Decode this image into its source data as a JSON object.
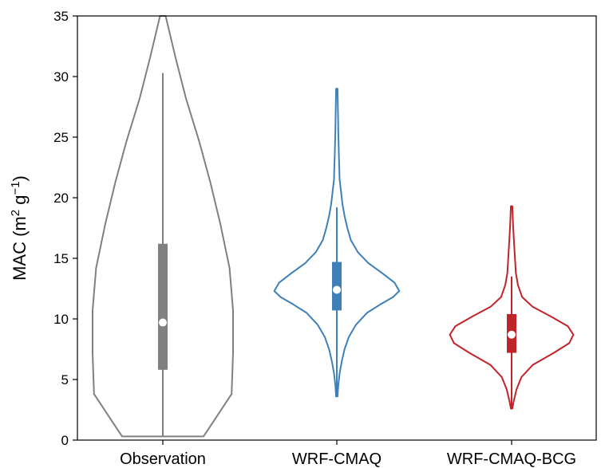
{
  "chart_data": {
    "type": "violin",
    "ylabel": {
      "base": "MAC (m",
      "sup1": "2",
      "mid": " g",
      "sup2": "−1",
      "end": ")"
    },
    "ylim": [
      0,
      35
    ],
    "yticks": [
      0,
      5,
      10,
      15,
      20,
      25,
      30,
      35
    ],
    "categories": [
      "Observation",
      "WRF-CMAQ",
      "WRF-CMAQ-BCG"
    ],
    "series": [
      {
        "color": "#808080",
        "min": 0.3,
        "q1": 5.8,
        "median": 9.7,
        "q3": 16.2,
        "whisker_high": 30.3,
        "max": 35,
        "profile": [
          [
            0.3,
            0.58
          ],
          [
            3.8,
            0.98
          ],
          [
            7.2,
            1.0
          ],
          [
            10.7,
            1.0
          ],
          [
            14.2,
            0.95
          ],
          [
            17.8,
            0.82
          ],
          [
            21.2,
            0.68
          ],
          [
            24.6,
            0.52
          ],
          [
            28.2,
            0.33
          ],
          [
            31.6,
            0.18
          ],
          [
            35.0,
            0.04
          ]
        ]
      },
      {
        "color": "#3f80b9",
        "min": 3.6,
        "q1": 10.7,
        "median": 12.4,
        "q3": 14.7,
        "whisker_high": 19.2,
        "max": 29.0,
        "profile": [
          [
            3.6,
            0.01
          ],
          [
            4.5,
            0.02
          ],
          [
            5.5,
            0.04
          ],
          [
            6.5,
            0.07
          ],
          [
            7.5,
            0.11
          ],
          [
            8.5,
            0.17
          ],
          [
            9.5,
            0.27
          ],
          [
            10.5,
            0.43
          ],
          [
            11.2,
            0.62
          ],
          [
            11.8,
            0.8
          ],
          [
            12.3,
            0.89
          ],
          [
            13.0,
            0.82
          ],
          [
            13.8,
            0.64
          ],
          [
            14.6,
            0.45
          ],
          [
            15.5,
            0.3
          ],
          [
            16.5,
            0.2
          ],
          [
            17.5,
            0.15
          ],
          [
            18.5,
            0.11
          ],
          [
            19.5,
            0.08
          ],
          [
            20.5,
            0.06
          ],
          [
            21.5,
            0.04
          ],
          [
            22.5,
            0.035
          ],
          [
            23.5,
            0.03
          ],
          [
            24.5,
            0.025
          ],
          [
            25.5,
            0.02
          ],
          [
            26.5,
            0.018
          ],
          [
            27.5,
            0.015
          ],
          [
            29.0,
            0.01
          ]
        ]
      },
      {
        "color": "#c02428",
        "min": 2.6,
        "q1": 7.2,
        "median": 8.7,
        "q3": 10.4,
        "whisker_high": 13.5,
        "max": 19.3,
        "profile": [
          [
            2.6,
            0.01
          ],
          [
            3.2,
            0.03
          ],
          [
            4.2,
            0.07
          ],
          [
            5.2,
            0.14
          ],
          [
            6.2,
            0.3
          ],
          [
            7.2,
            0.6
          ],
          [
            8.0,
            0.82
          ],
          [
            8.7,
            0.88
          ],
          [
            9.4,
            0.8
          ],
          [
            10.2,
            0.56
          ],
          [
            11.0,
            0.3
          ],
          [
            11.8,
            0.15
          ],
          [
            12.8,
            0.09
          ],
          [
            13.8,
            0.06
          ],
          [
            14.8,
            0.05
          ],
          [
            15.8,
            0.04
          ],
          [
            16.8,
            0.03
          ],
          [
            17.8,
            0.02
          ],
          [
            18.6,
            0.015
          ],
          [
            19.3,
            0.01
          ]
        ]
      }
    ]
  }
}
